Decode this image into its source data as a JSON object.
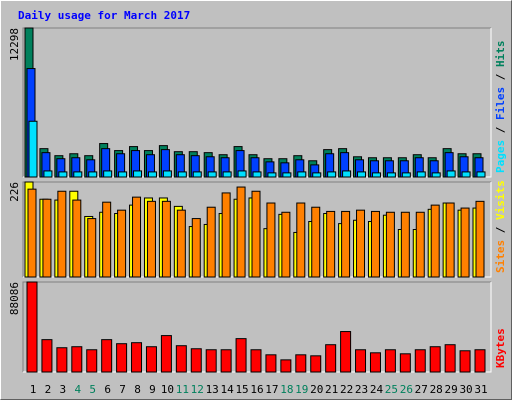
{
  "title": "Daily usage for March 2017",
  "chart_data": [
    {
      "type": "bar",
      "ylim": [
        0,
        12298
      ],
      "yticks": [
        12298
      ],
      "series": [
        {
          "name": "Hits",
          "color": "#00805c",
          "values": [
            12298,
            2340,
            1760,
            1920,
            1760,
            2760,
            2180,
            2510,
            2180,
            2590,
            2090,
            2090,
            2010,
            1840,
            2510,
            1840,
            1510,
            1510,
            1760,
            1340,
            2260,
            2340,
            1670,
            1590,
            1590,
            1590,
            1840,
            1590,
            2340,
            1920,
            1920
          ]
        },
        {
          "name": "Files",
          "color": "#0040ff",
          "values": [
            8950,
            2010,
            1510,
            1590,
            1420,
            2340,
            1920,
            2180,
            1840,
            2260,
            1840,
            1760,
            1670,
            1590,
            2180,
            1590,
            1250,
            1170,
            1420,
            1000,
            1920,
            2010,
            1420,
            1340,
            1340,
            1340,
            1590,
            1340,
            2010,
            1670,
            1590
          ]
        },
        {
          "name": "Pages",
          "color": "#00e0ff",
          "values": [
            4600,
            500,
            420,
            420,
            420,
            500,
            420,
            500,
            420,
            500,
            420,
            420,
            420,
            420,
            500,
            420,
            340,
            340,
            420,
            340,
            420,
            500,
            420,
            340,
            340,
            340,
            420,
            340,
            500,
            420,
            420
          ]
        }
      ]
    },
    {
      "type": "bar",
      "ylim": [
        0,
        226
      ],
      "yticks": [
        226
      ],
      "series": [
        {
          "name": "Visits",
          "color": "#ffff00",
          "values": [
            226,
            185,
            183,
            204,
            144,
            154,
            151,
            171,
            188,
            188,
            168,
            120,
            125,
            151,
            185,
            188,
            115,
            149,
            106,
            132,
            151,
            127,
            135,
            132,
            147,
            113,
            113,
            161,
            176,
            159,
            164
          ]
        },
        {
          "name": "Sites",
          "color": "#ff8000",
          "values": [
            209,
            185,
            204,
            183,
            139,
            178,
            159,
            190,
            180,
            180,
            159,
            139,
            166,
            200,
            214,
            204,
            176,
            154,
            176,
            166,
            156,
            156,
            159,
            156,
            154,
            154,
            154,
            171,
            176,
            164,
            180
          ]
        }
      ]
    },
    {
      "type": "bar",
      "ylim": [
        0,
        88086
      ],
      "yticks": [
        88086
      ],
      "categories": [
        "1",
        "2",
        "3",
        "4",
        "5",
        "6",
        "7",
        "8",
        "9",
        "10",
        "11",
        "12",
        "13",
        "14",
        "15",
        "16",
        "17",
        "18",
        "19",
        "20",
        "21",
        "22",
        "23",
        "24",
        "25",
        "26",
        "27",
        "28",
        "29",
        "30",
        "31"
      ],
      "category_colors": [
        "#000000",
        "#000000",
        "#000000",
        "#00805c",
        "#00805c",
        "#000000",
        "#000000",
        "#000000",
        "#000000",
        "#000000",
        "#00805c",
        "#00805c",
        "#000000",
        "#000000",
        "#000000",
        "#000000",
        "#000000",
        "#00805c",
        "#00805c",
        "#000000",
        "#000000",
        "#000000",
        "#000000",
        "#000000",
        "#00805c",
        "#00805c",
        "#000000",
        "#000000",
        "#000000",
        "#000000",
        "#000000"
      ],
      "series": [
        {
          "name": "KBytes",
          "color": "#ff0000",
          "values": [
            88086,
            31670,
            23760,
            24750,
            21780,
            31670,
            27710,
            28700,
            24750,
            35640,
            25740,
            22760,
            21780,
            21780,
            32660,
            21780,
            16830,
            11880,
            16830,
            15840,
            26720,
            39590,
            21780,
            18800,
            21780,
            17820,
            21780,
            24750,
            26720,
            20790,
            21780
          ]
        }
      ]
    }
  ]
}
